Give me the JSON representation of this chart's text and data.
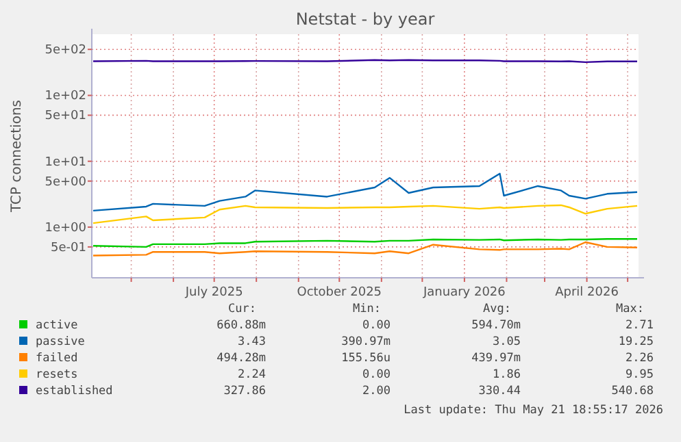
{
  "chart_data": {
    "type": "line",
    "title": "Netstat - by year",
    "ylabel": "TCP connections",
    "log": "y",
    "x": [
      "2025-04-03",
      "2025-05-12",
      "2025-05-17",
      "2025-06-24",
      "2025-07-05",
      "2025-07-24",
      "2025-07-31",
      "2025-09-22",
      "2025-10-27",
      "2025-11-07",
      "2025-11-21",
      "2025-12-09",
      "2026-01-12",
      "2026-01-27",
      "2026-01-30",
      "2026-02-24",
      "2026-03-13",
      "2026-03-19",
      "2026-03-31",
      "2026-04-16",
      "2026-05-08"
    ],
    "xlim": [
      "2025-04-02",
      "2026-05-09"
    ],
    "xticks": [
      {
        "value": "2025-05-01",
        "label": null
      },
      {
        "value": "2025-06-01",
        "label": null
      },
      {
        "value": "2025-07-01",
        "label": "July 2025"
      },
      {
        "value": "2025-08-01",
        "label": null
      },
      {
        "value": "2025-09-01",
        "label": null
      },
      {
        "value": "2025-10-01",
        "label": "October 2025"
      },
      {
        "value": "2025-11-01",
        "label": null
      },
      {
        "value": "2025-12-01",
        "label": null
      },
      {
        "value": "2026-01-01",
        "label": "January 2026"
      },
      {
        "value": "2026-02-01",
        "label": null
      },
      {
        "value": "2026-03-01",
        "label": null
      },
      {
        "value": "2026-04-01",
        "label": "April 2026"
      },
      {
        "value": "2026-05-01",
        "label": null
      }
    ],
    "ylim": [
      0.17,
      850
    ],
    "yticks": [
      {
        "value": 0.5,
        "label": "5e-01"
      },
      {
        "value": 1,
        "label": "1e+00"
      },
      {
        "value": 5,
        "label": "5e+00"
      },
      {
        "value": 10,
        "label": "1e+01"
      },
      {
        "value": 50,
        "label": "5e+01"
      },
      {
        "value": 100,
        "label": "1e+02"
      },
      {
        "value": 500,
        "label": "5e+02"
      }
    ],
    "grid": true,
    "legend": "bottom",
    "line_style": "solid",
    "series": [
      {
        "name": "active",
        "color": "#00cc00",
        "values": [
          0.52,
          0.5,
          0.55,
          0.55,
          0.57,
          0.57,
          0.6,
          0.62,
          0.6,
          0.62,
          0.62,
          0.65,
          0.64,
          0.65,
          0.63,
          0.65,
          0.64,
          0.65,
          0.65,
          0.66,
          0.66
        ]
      },
      {
        "name": "passive",
        "color": "#0066b3",
        "values": [
          1.78,
          2.05,
          2.26,
          2.1,
          2.5,
          2.9,
          3.6,
          2.9,
          4.0,
          5.6,
          3.3,
          4.0,
          4.2,
          6.5,
          3.0,
          4.2,
          3.6,
          3.0,
          2.7,
          3.2,
          3.4
        ]
      },
      {
        "name": "failed",
        "color": "#ff8000",
        "values": [
          0.37,
          0.38,
          0.42,
          0.42,
          0.4,
          0.42,
          0.43,
          0.42,
          0.4,
          0.43,
          0.4,
          0.54,
          0.46,
          0.45,
          0.46,
          0.46,
          0.47,
          0.46,
          0.59,
          0.5,
          0.49
        ]
      },
      {
        "name": "resets",
        "color": "#ffcc00",
        "values": [
          1.15,
          1.45,
          1.27,
          1.4,
          1.85,
          2.1,
          2.0,
          1.95,
          2.0,
          2.0,
          2.05,
          2.1,
          1.9,
          2.0,
          1.95,
          2.1,
          2.15,
          2.0,
          1.6,
          1.9,
          2.1
        ]
      },
      {
        "name": "established",
        "color": "#330099",
        "values": [
          330,
          335,
          330,
          330,
          330,
          332,
          333,
          330,
          345,
          340,
          345,
          340,
          340,
          335,
          330,
          330,
          328,
          330,
          320,
          328,
          328
        ]
      }
    ],
    "annotations": [
      "Cur:",
      "Min:",
      "Avg:",
      "Max:",
      "660.88m",
      "0.00",
      "594.70m",
      "2.71",
      "3.43",
      "390.97m",
      "3.05",
      "19.25",
      "494.28m",
      "155.56u",
      "439.97m",
      "2.26",
      "2.24",
      "0.00",
      "1.86",
      "9.95",
      "327.86",
      "2.00",
      "330.44",
      "540.68",
      "Last update: Thu May 21 18:55:17 2026"
    ]
  }
}
